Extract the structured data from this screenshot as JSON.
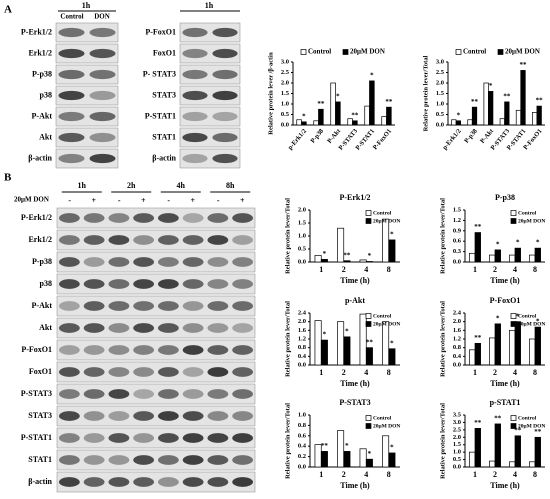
{
  "panel_labels": [
    "A",
    "B"
  ],
  "blot_a_left": {
    "time": "1h",
    "columns": [
      "Control",
      "DON"
    ],
    "rows": [
      "P-Erk1/2",
      "Erk1/2",
      "P-p38",
      "p38",
      "P-Akt",
      "Akt",
      "β-actin"
    ]
  },
  "blot_a_right": {
    "time": "1h",
    "rows": [
      "P-FoxO1",
      "FoxO1",
      "P- STAT3",
      "STAT3",
      "P-STAT1",
      "STAT1",
      "β-actin"
    ]
  },
  "blot_b": {
    "treatment": "20μM DON",
    "times": [
      "1h",
      "2h",
      "4h",
      "8h"
    ],
    "signs": [
      "-",
      "+"
    ],
    "rows": [
      "P-Erk1/2",
      "Erk1/2",
      "P-p38",
      "p38",
      "P-Akt",
      "Akt",
      "P-FoxO1",
      "FoxO1",
      "P-STAT3",
      "STAT3",
      "P-STAT1",
      "STAT1",
      "β-actin"
    ]
  },
  "chart_data": [
    {
      "type": "bar",
      "y_label": "Relative protein lever /β-actin",
      "categories": [
        "p-Erk1/2",
        "P-p38",
        "P-Akt",
        "P-STAT3",
        "P-STAT1",
        "P-FoxO1"
      ],
      "series": [
        {
          "name": "Control",
          "color": "#ffffff",
          "values": [
            0.25,
            0.2,
            2.0,
            0.3,
            0.9,
            0.4
          ]
        },
        {
          "name": "20μM DON",
          "color": "#000000",
          "values": [
            0.15,
            0.75,
            1.1,
            0.2,
            2.1,
            0.85
          ],
          "annotations": [
            "*",
            "**",
            "*",
            "**",
            "*",
            "**"
          ]
        }
      ],
      "ylim": [
        0,
        3
      ],
      "yticks": [
        {
          "value": 0,
          "label": "0.0"
        },
        {
          "value": 0.5,
          "label": "0.5"
        },
        {
          "value": 1,
          "label": "1.0"
        },
        {
          "value": 1.5,
          "label": "1.5"
        },
        {
          "value": 2,
          "label": "2.0"
        },
        {
          "value": 2.5,
          "label": "2.5"
        },
        {
          "value": 3,
          "label": "3.0"
        }
      ],
      "legend": "upper center"
    },
    {
      "type": "bar",
      "y_label": "Relative protein lever/Total",
      "categories": [
        "p-Erk1/2",
        "P-p38",
        "P-Akt",
        "P-STAT3",
        "P-STAT1",
        "P-FoxO1"
      ],
      "series": [
        {
          "name": "Control",
          "color": "#ffffff",
          "values": [
            0.25,
            0.25,
            2.0,
            0.3,
            0.7,
            0.6
          ]
        },
        {
          "name": "20μM DON",
          "color": "#000000",
          "values": [
            0.2,
            0.85,
            1.6,
            1.1,
            2.6,
            0.9
          ],
          "annotations": [
            "*",
            "**",
            "*",
            "**",
            "**",
            "**"
          ]
        }
      ],
      "ylim": [
        0,
        3
      ],
      "yticks": [
        {
          "value": 0,
          "label": "0.0"
        },
        {
          "value": 0.5,
          "label": "0.5"
        },
        {
          "value": 1,
          "label": "1.0"
        },
        {
          "value": 1.5,
          "label": "1.5"
        },
        {
          "value": 2,
          "label": "2.0"
        },
        {
          "value": 2.5,
          "label": "2.5"
        },
        {
          "value": 3,
          "label": "3.0"
        }
      ],
      "legend": "upper center"
    },
    {
      "type": "bar",
      "title": "P-Erk1/2",
      "x_label": "Time (h)",
      "y_label": "Relative protein lever/Total",
      "categories": [
        "1",
        "2",
        "4",
        "8"
      ],
      "series": [
        {
          "name": "Control",
          "color": "#ffffff",
          "values": [
            0.25,
            1.3,
            0.08,
            1.65
          ]
        },
        {
          "name": "20μM DON",
          "color": "#000000",
          "values": [
            0.1,
            0.05,
            0.02,
            0.85
          ],
          "annotations": [
            "*",
            "**",
            "*",
            "*"
          ]
        }
      ],
      "ylim": [
        0,
        2
      ],
      "yticks": [
        {
          "value": 0,
          "label": "0.0"
        },
        {
          "value": 0.5,
          "label": "0.5"
        },
        {
          "value": 1,
          "label": "1.0"
        },
        {
          "value": 1.5,
          "label": "1.5"
        },
        {
          "value": 2,
          "label": "2.0"
        }
      ],
      "legend": "upper right"
    },
    {
      "type": "bar",
      "title": "P-p38",
      "x_label": "Time (h)",
      "y_label": "Relative protein lever/Total",
      "categories": [
        "1",
        "2",
        "4",
        "8"
      ],
      "series": [
        {
          "name": "Control",
          "color": "#ffffff",
          "values": [
            0.25,
            0.2,
            0.2,
            0.2
          ]
        },
        {
          "name": "20μM DON",
          "color": "#000000",
          "values": [
            0.85,
            0.35,
            0.4,
            0.4
          ],
          "annotations": [
            "**",
            "*",
            "*",
            "*"
          ]
        }
      ],
      "ylim": [
        0,
        1.5
      ],
      "yticks": [
        {
          "value": 0,
          "label": "0.0"
        },
        {
          "value": 0.3,
          "label": "0.3"
        },
        {
          "value": 0.6,
          "label": "0.6"
        },
        {
          "value": 0.9,
          "label": "0.9"
        },
        {
          "value": 1.2,
          "label": "1.2"
        },
        {
          "value": 1.5,
          "label": "1.5"
        }
      ],
      "legend": "upper right"
    },
    {
      "type": "bar",
      "title": "p-Akt",
      "x_label": "Time (h)",
      "y_label": "Relative protein lever/Total",
      "categories": [
        "1",
        "2",
        "4",
        "8"
      ],
      "series": [
        {
          "name": "Control",
          "color": "#ffffff",
          "values": [
            2.05,
            2.0,
            2.35,
            2.0
          ]
        },
        {
          "name": "20μM DON",
          "color": "#000000",
          "values": [
            1.15,
            1.3,
            0.8,
            0.75
          ],
          "annotations": [
            "*",
            "*",
            "**",
            "*"
          ]
        }
      ],
      "ylim": [
        0,
        2.4
      ],
      "yticks": [
        {
          "value": 0,
          "label": "0.0"
        },
        {
          "value": 0.4,
          "label": "0.4"
        },
        {
          "value": 0.8,
          "label": "0.8"
        },
        {
          "value": 1.2,
          "label": "1.2"
        },
        {
          "value": 1.6,
          "label": "1.6"
        },
        {
          "value": 2,
          "label": "2.0"
        },
        {
          "value": 2.4,
          "label": "2.4"
        }
      ],
      "legend": "upper right"
    },
    {
      "type": "bar",
      "title": "P-FoxO1",
      "x_label": "Time (h)",
      "y_label": "Relative protein lever/Total",
      "categories": [
        "1",
        "2",
        "4",
        "8"
      ],
      "series": [
        {
          "name": "Control",
          "color": "#ffffff",
          "values": [
            0.7,
            1.25,
            1.6,
            1.2
          ]
        },
        {
          "name": "20μM DON",
          "color": "#000000",
          "values": [
            1.0,
            1.9,
            2.0,
            1.75
          ],
          "annotations": [
            "**",
            "*",
            "*",
            "*"
          ]
        }
      ],
      "ylim": [
        0,
        2.4
      ],
      "yticks": [
        {
          "value": 0,
          "label": "0.0"
        },
        {
          "value": 0.4,
          "label": "0.4"
        },
        {
          "value": 0.8,
          "label": "0.8"
        },
        {
          "value": 1.2,
          "label": "1.2"
        },
        {
          "value": 1.6,
          "label": "1.6"
        },
        {
          "value": 2,
          "label": "2.0"
        },
        {
          "value": 2.4,
          "label": "2.4"
        }
      ],
      "legend": "upper right"
    },
    {
      "type": "bar",
      "title": "P-STAT3",
      "x_label": "Time (h)",
      "y_label": "Relative protein lever/Total",
      "categories": [
        "1",
        "2",
        "4",
        "8"
      ],
      "series": [
        {
          "name": "Control",
          "color": "#ffffff",
          "values": [
            0.43,
            0.7,
            0.35,
            0.6
          ]
        },
        {
          "name": "20μM DON",
          "color": "#000000",
          "values": [
            0.3,
            0.3,
            0.15,
            0.27
          ],
          "annotations": [
            "**",
            "*",
            "*",
            "*"
          ]
        }
      ],
      "ylim": [
        0,
        1
      ],
      "yticks": [
        {
          "value": 0,
          "label": "0.0"
        },
        {
          "value": 0.2,
          "label": "0.2"
        },
        {
          "value": 0.4,
          "label": "0.4"
        },
        {
          "value": 0.6,
          "label": "0.6"
        },
        {
          "value": 0.8,
          "label": "0.8"
        },
        {
          "value": 1,
          "label": "1.0"
        }
      ],
      "legend": "upper right"
    },
    {
      "type": "bar",
      "title": "p-STAT1",
      "x_label": "Time (h)",
      "y_label": "Relative protein lever/Total",
      "categories": [
        "1",
        "2",
        "4",
        "8"
      ],
      "series": [
        {
          "name": "Control",
          "color": "#ffffff",
          "values": [
            1.0,
            0.4,
            0.35,
            0.35
          ]
        },
        {
          "name": "20μM DON",
          "color": "#000000",
          "values": [
            2.6,
            2.9,
            2.1,
            2.0
          ],
          "annotations": [
            "**",
            "**",
            "**",
            "**"
          ]
        }
      ],
      "ylim": [
        0,
        3.5
      ],
      "yticks": [
        {
          "value": 0,
          "label": "0.0"
        },
        {
          "value": 0.5,
          "label": "0.5"
        },
        {
          "value": 1,
          "label": "1.0"
        },
        {
          "value": 1.5,
          "label": "1.5"
        },
        {
          "value": 2,
          "label": "2.0"
        },
        {
          "value": 2.5,
          "label": "2.5"
        },
        {
          "value": 3,
          "label": "3.0"
        },
        {
          "value": 3.5,
          "label": "3.5"
        }
      ],
      "legend": "upper right"
    }
  ]
}
